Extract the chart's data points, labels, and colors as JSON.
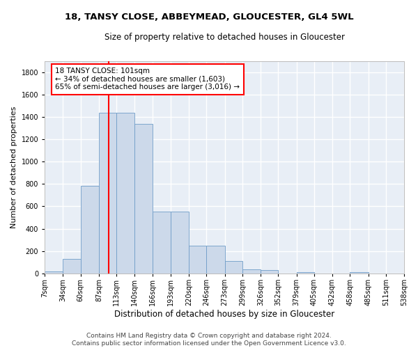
{
  "title": "18, TANSY CLOSE, ABBEYMEAD, GLOUCESTER, GL4 5WL",
  "subtitle": "Size of property relative to detached houses in Gloucester",
  "xlabel": "Distribution of detached houses by size in Gloucester",
  "ylabel": "Number of detached properties",
  "bar_color": "#ccd9ea",
  "bar_edge_color": "#6f9dc8",
  "background_color": "#e8eef6",
  "grid_color": "#ffffff",
  "vline_x": 101,
  "vline_color": "red",
  "annotation_text": "18 TANSY CLOSE: 101sqm\n← 34% of detached houses are smaller (1,603)\n65% of semi-detached houses are larger (3,016) →",
  "annotation_box_color": "red",
  "bins": [
    7,
    34,
    60,
    87,
    113,
    140,
    166,
    193,
    220,
    246,
    273,
    299,
    326,
    352,
    379,
    405,
    432,
    458,
    485,
    511,
    538
  ],
  "bin_labels": [
    "7sqm",
    "34sqm",
    "60sqm",
    "87sqm",
    "113sqm",
    "140sqm",
    "166sqm",
    "193sqm",
    "220sqm",
    "246sqm",
    "273sqm",
    "299sqm",
    "326sqm",
    "352sqm",
    "379sqm",
    "405sqm",
    "432sqm",
    "458sqm",
    "485sqm",
    "511sqm",
    "538sqm"
  ],
  "bar_heights": [
    15,
    130,
    785,
    1440,
    1440,
    1340,
    555,
    555,
    250,
    250,
    110,
    35,
    30,
    0,
    10,
    0,
    0,
    10,
    0,
    0,
    0
  ],
  "ylim": [
    0,
    1900
  ],
  "yticks": [
    0,
    200,
    400,
    600,
    800,
    1000,
    1200,
    1400,
    1600,
    1800
  ],
  "footer_text": "Contains HM Land Registry data © Crown copyright and database right 2024.\nContains public sector information licensed under the Open Government Licence v3.0.",
  "title_fontsize": 9.5,
  "subtitle_fontsize": 8.5,
  "xlabel_fontsize": 8.5,
  "ylabel_fontsize": 8,
  "tick_fontsize": 7,
  "footer_fontsize": 6.5,
  "annot_fontsize": 7.5
}
